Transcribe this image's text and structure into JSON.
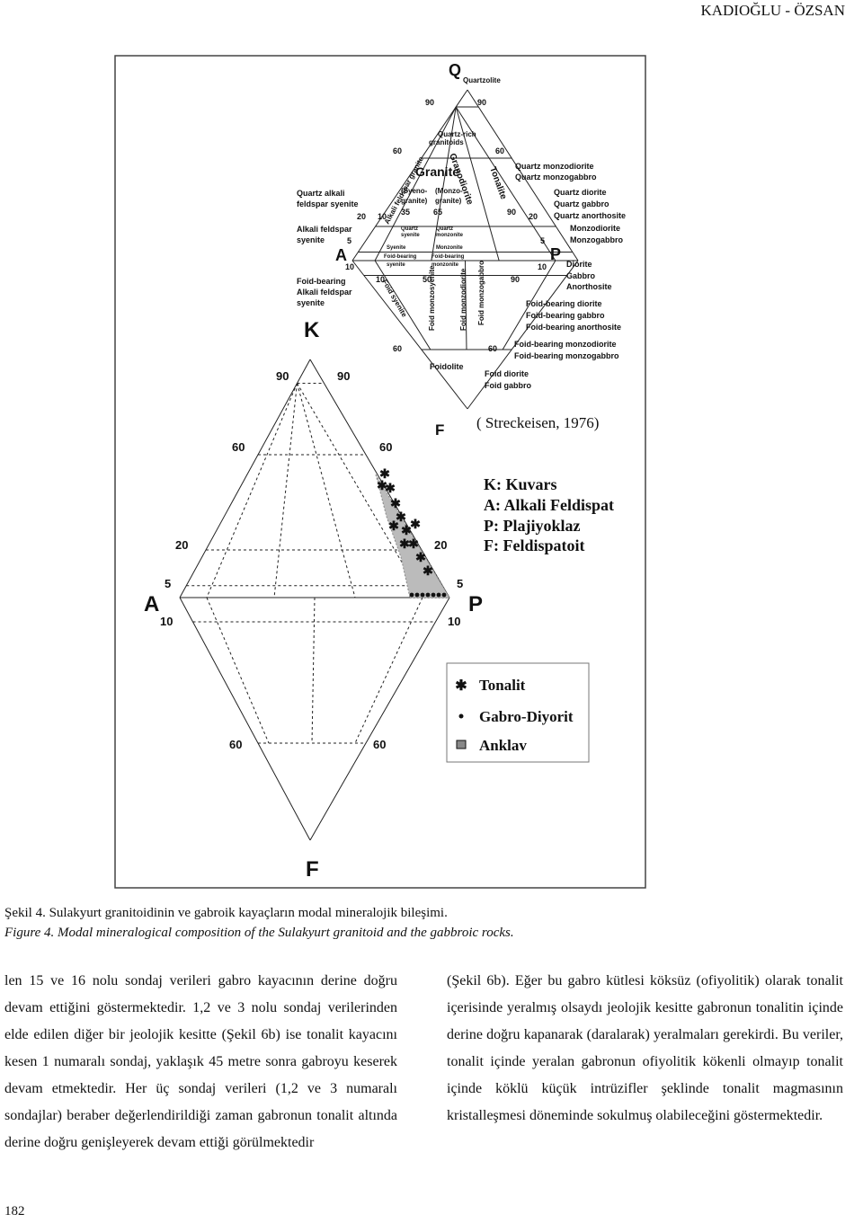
{
  "header": {
    "running_title": "KADIOĞLU - ÖZSAN"
  },
  "figure": {
    "qapf_small": {
      "vertices": [
        "Q",
        "A",
        "P",
        "F"
      ],
      "fields": [
        "Quartzolite",
        "Quartz-rich",
        "granitoids",
        "Granite",
        "Alkali feldspar granite",
        "Granodiorite",
        "Tonalite",
        "(Syeno-",
        "granite)",
        "(Monzo-",
        "granite)",
        "Quartz",
        "syenite",
        "Quartz",
        "monzonite",
        "Syenite",
        "Monzonite",
        "Foid-bearing",
        "syenite",
        "Foid-bearing",
        "monzonite",
        "Foid syenite",
        "Foid monzosyenite",
        "Foid monzodiorite",
        "Foid monzogabbro",
        "Foidolite"
      ],
      "right_labels": [
        "Quartz monzodiorite",
        "Quartz monzogabbro",
        "Quartz diorite",
        "Quartz gabbro",
        "Quartz anorthosite",
        "Monzodiorite",
        "Monzogabbro",
        "Diorite",
        "Gabbro",
        "Anorthosite",
        "Foid-bearing diorite",
        "Foid-bearing gabbro",
        "Foid-bearing anorthosite",
        "Foid-bearing monzodiorite",
        "Foid-bearing monzogabbro",
        "Foid diorite",
        "Foid gabbro"
      ],
      "left_labels": [
        "Quartz alkali",
        "feldspar syenite",
        "Alkali feldspar",
        "syenite",
        "Foid-bearing",
        "Alkali feldspar",
        "syenite"
      ],
      "numbers": [
        90,
        90,
        60,
        60,
        20,
        10,
        35,
        65,
        90,
        20,
        5,
        5,
        10,
        10,
        10,
        50,
        90,
        60,
        60
      ]
    },
    "qapf_main": {
      "vertices": [
        "K",
        "A",
        "P",
        "F"
      ],
      "numbers": [
        90,
        90,
        60,
        60,
        20,
        20,
        5,
        5,
        10,
        10,
        60,
        60
      ]
    },
    "source": "( Streckeisen, 1976)",
    "abbreviations": [
      "K: Kuvars",
      "A: Alkali Feldispat",
      "P: Plajiyoklaz",
      "F: Feldispatoit"
    ],
    "legend": [
      "Tonalit",
      "Gabro-Diyorit",
      "Anklav"
    ]
  },
  "caption": {
    "tr": "Şekil 4. Sulakyurt granitoidinin ve gabroik kayaçların modal mineralojik bileşimi.",
    "en": "Figure 4. Modal mineralogical composition of the Sulakyurt granitoid and the gabbroic rocks."
  },
  "body": {
    "left": "len 15 ve 16 nolu sondaj verileri gabro kayacının derine doğru devam ettiğini göstermektedir. 1,2 ve 3 nolu sondaj verilerinden elde edilen diğer bir jeolojik kesitte (Şekil 6b) ise tonalit kayacını kesen 1 numaralı sondaj, yaklaşık 45 metre sonra gabroyu keserek devam etmektedir. Her üç sondaj verileri (1,2 ve 3 numaralı sondajlar) beraber değerlendirildiği zaman gabronun tonalit altında derine doğru genişleyerek devam ettiği görülmektedir",
    "right": "(Şekil 6b). Eğer bu gabro kütlesi köksüz (ofiyolitik) olarak tonalit içerisinde yeralmış olsaydı jeolojik kesitte gabronun tonalitin içinde derine doğru kapanarak (daralarak) yeralmaları gerekirdi. Bu veriler, tonalit içinde yeralan gabronun ofiyolitik kökenli olmayıp tonalit içinde köklü küçük intrüzifler şeklinde tonalit magmasının kristalleşmesi döneminde sokulmuş olabileceğini göstermektedir."
  },
  "footer": {
    "page_number": 182
  }
}
